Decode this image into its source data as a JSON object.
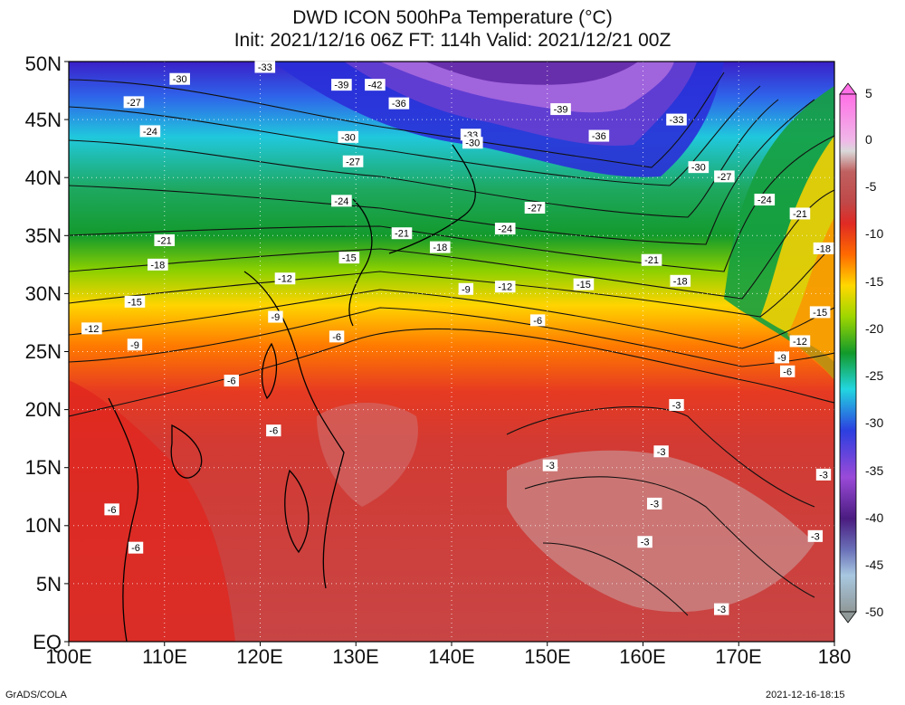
{
  "title_line1": "DWD ICON 500hPa Temperature (°C)",
  "title_line2": "Init: 2021/12/16 06Z  FT: 114h  Valid: 2021/12/21 00Z",
  "lat_labels": [
    "50N",
    "45N",
    "40N",
    "35N",
    "30N",
    "25N",
    "20N",
    "15N",
    "10N",
    "5N",
    "EQ"
  ],
  "lon_labels": [
    "100E",
    "110E",
    "120E",
    "130E",
    "140E",
    "150E",
    "160E",
    "170E",
    "180"
  ],
  "colorbar_labels": [
    "5",
    "0",
    "-5",
    "-10",
    "-15",
    "-20",
    "-25",
    "-30",
    "-35",
    "-40",
    "-45",
    "-50"
  ],
  "colorbar_colors": [
    "#ff6fe6",
    "#d9d9d9",
    "#c04848",
    "#e02a24",
    "#ff6a00",
    "#ffd800",
    "#9ed600",
    "#129a2a",
    "#22d6e0",
    "#2c3fe0",
    "#9a4ad8",
    "#4a1c80",
    "#a8c8e0",
    "#909898"
  ],
  "contour_labels": [
    {
      "text": "-33",
      "lon": 120.5,
      "lat": 49.8
    },
    {
      "text": "-30",
      "lon": 111.6,
      "lat": 48.5
    },
    {
      "text": "-39",
      "lon": 128.5,
      "lat": 48.0
    },
    {
      "text": "-42",
      "lon": 132.0,
      "lat": 48.0
    },
    {
      "text": "-27",
      "lon": 106.8,
      "lat": 46.5
    },
    {
      "text": "-36",
      "lon": 134.5,
      "lat": 46.4
    },
    {
      "text": "-39",
      "lon": 151.4,
      "lat": 45.9
    },
    {
      "text": "-33",
      "lon": 163.5,
      "lat": 45.0
    },
    {
      "text": "-24",
      "lon": 108.5,
      "lat": 44.0
    },
    {
      "text": "-30",
      "lon": 129.2,
      "lat": 43.5
    },
    {
      "text": "-33",
      "lon": 142.0,
      "lat": 43.7
    },
    {
      "text": "-30",
      "lon": 142.2,
      "lat": 43.0
    },
    {
      "text": "-36",
      "lon": 155.4,
      "lat": 43.6
    },
    {
      "text": "-27",
      "lon": 129.7,
      "lat": 41.4
    },
    {
      "text": "-30",
      "lon": 165.8,
      "lat": 40.9
    },
    {
      "text": "-27",
      "lon": 168.5,
      "lat": 40.1
    },
    {
      "text": "-24",
      "lon": 128.5,
      "lat": 38.0
    },
    {
      "text": "-27",
      "lon": 148.7,
      "lat": 37.4
    },
    {
      "text": "-24",
      "lon": 172.7,
      "lat": 38.1
    },
    {
      "text": "-21",
      "lon": 176.4,
      "lat": 36.9
    },
    {
      "text": "-24",
      "lon": 145.6,
      "lat": 35.6
    },
    {
      "text": "-21",
      "lon": 134.8,
      "lat": 35.2
    },
    {
      "text": "-21",
      "lon": 110.0,
      "lat": 34.6
    },
    {
      "text": "-18",
      "lon": 138.8,
      "lat": 34.0
    },
    {
      "text": "-18",
      "lon": 180.6,
      "lat": 33.9
    },
    {
      "text": "-15",
      "lon": 129.3,
      "lat": 33.1
    },
    {
      "text": "-18",
      "lon": 109.3,
      "lat": 32.5
    },
    {
      "text": "-21",
      "lon": 160.9,
      "lat": 32.9
    },
    {
      "text": "-12",
      "lon": 122.6,
      "lat": 31.3
    },
    {
      "text": "-9",
      "lon": 141.5,
      "lat": 30.4
    },
    {
      "text": "-12",
      "lon": 145.6,
      "lat": 30.6
    },
    {
      "text": "-15",
      "lon": 153.8,
      "lat": 30.8
    },
    {
      "text": "-18",
      "lon": 163.9,
      "lat": 31.1
    },
    {
      "text": "-15",
      "lon": 106.9,
      "lat": 29.3
    },
    {
      "text": "-9",
      "lon": 121.6,
      "lat": 28.0
    },
    {
      "text": "-6",
      "lon": 149.0,
      "lat": 27.7
    },
    {
      "text": "-15",
      "lon": 178.5,
      "lat": 28.4
    },
    {
      "text": "-12",
      "lon": 102.4,
      "lat": 27.0
    },
    {
      "text": "-6",
      "lon": 128.0,
      "lat": 26.3
    },
    {
      "text": "-9",
      "lon": 106.9,
      "lat": 25.6
    },
    {
      "text": "-12",
      "lon": 176.4,
      "lat": 25.9
    },
    {
      "text": "-9",
      "lon": 174.5,
      "lat": 24.5
    },
    {
      "text": "-6",
      "lon": 175.1,
      "lat": 23.3
    },
    {
      "text": "-6",
      "lon": 117.0,
      "lat": 22.5
    },
    {
      "text": "-3",
      "lon": 163.5,
      "lat": 20.4
    },
    {
      "text": "-6",
      "lon": 121.4,
      "lat": 18.2
    },
    {
      "text": "-3",
      "lon": 161.9,
      "lat": 16.4
    },
    {
      "text": "-3",
      "lon": 150.3,
      "lat": 15.2
    },
    {
      "text": "-3",
      "lon": 182.7,
      "lat": 14.4
    },
    {
      "text": "-6",
      "lon": 104.5,
      "lat": 11.4
    },
    {
      "text": "-3",
      "lon": 161.2,
      "lat": 11.9
    },
    {
      "text": "-3",
      "lon": 178.0,
      "lat": 9.1
    },
    {
      "text": "-3",
      "lon": 160.2,
      "lat": 8.6
    },
    {
      "text": "-6",
      "lon": 107.0,
      "lat": 8.1
    },
    {
      "text": "-3",
      "lon": 168.2,
      "lat": 2.8
    }
  ],
  "credit_left": "GrADS/COLA",
  "credit_right": "2021-12-16-18:15"
}
